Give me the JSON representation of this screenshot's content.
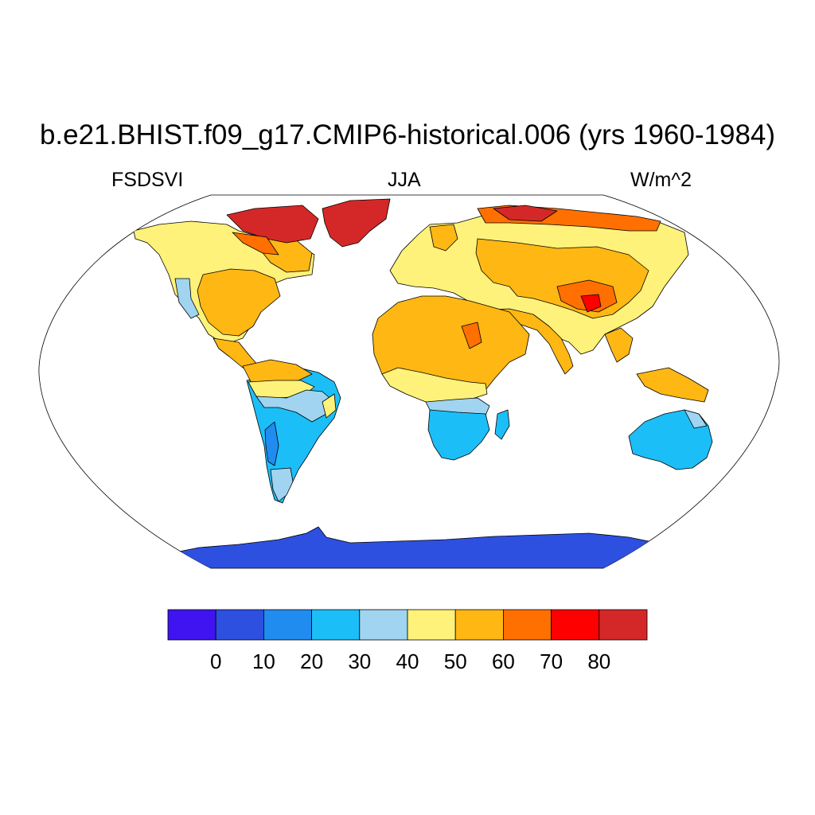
{
  "plot": {
    "title": "b.e21.BHIST.f09_g17.CMIP6-historical.006 (yrs 1960-1984)",
    "left_label": "FSDSVI",
    "center_label": "JJA",
    "right_label": "W/m^2"
  },
  "map": {
    "projection": "Robinson",
    "ocean_color": "#ffffff",
    "coastline_color": "#000000"
  },
  "colorbar": {
    "colors": [
      "#3f14f0",
      "#2d50e0",
      "#218cf0",
      "#1cbef8",
      "#a0d4f0",
      "#fff27a",
      "#ffb714",
      "#ff7000",
      "#ff0000",
      "#d42828"
    ],
    "tick_labels": [
      "0",
      "10",
      "20",
      "30",
      "40",
      "50",
      "60",
      "70",
      "80"
    ]
  }
}
